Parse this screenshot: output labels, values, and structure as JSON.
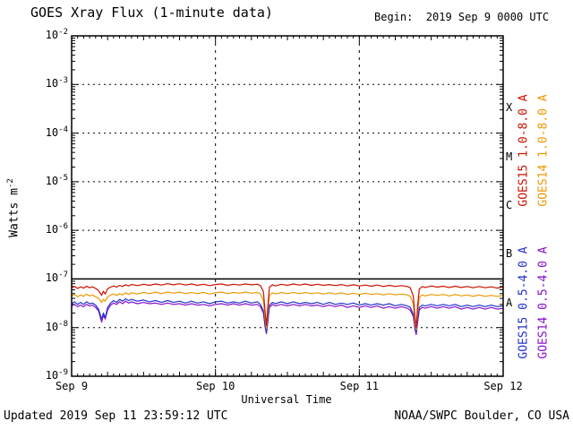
{
  "header": {
    "title": "GOES Xray Flux (1-minute data)",
    "begin_label": "Begin:  2019 Sep 9 0000 UTC"
  },
  "footer": {
    "updated": "Updated 2019 Sep 11 23:59:12 UTC",
    "credit": "NOAA/SWPC Boulder, CO USA"
  },
  "axes": {
    "y_label_base": "Watts m",
    "y_label_exp": "-2",
    "x_label": "Universal Time",
    "x_tick_hours": [
      0,
      24,
      48,
      72
    ],
    "x_tick_labels": [
      "Sep 9",
      "Sep 10",
      "Sep 11",
      "Sep 12"
    ],
    "y_tick_exponents": [
      -2,
      -3,
      -4,
      -5,
      -6,
      -7,
      -8,
      -9
    ]
  },
  "flare_classes": [
    {
      "label": "X",
      "log_center": -3.5
    },
    {
      "label": "M",
      "log_center": -4.5
    },
    {
      "label": "C",
      "log_center": -5.5
    },
    {
      "label": "B",
      "log_center": -6.5
    },
    {
      "label": "A",
      "log_center": -7.5
    }
  ],
  "chart_data": {
    "type": "line",
    "title": "GOES Xray Flux (1-minute data)",
    "xlabel": "Universal Time",
    "ylabel": "Watts m^-2",
    "x_start": "2019 Sep 9 0000 UTC",
    "x_range_hours": [
      0,
      72
    ],
    "y_log_range": [
      1e-09,
      0.01
    ],
    "y_scale": "log",
    "grid_exponents": [
      -3,
      -4,
      -5,
      -6,
      -7,
      -8
    ],
    "solid_line_exponent": -7,
    "dashed_vertical_hours": [
      24,
      48
    ],
    "units": "W m^-2",
    "scale": 1e-08,
    "x_hours": [
      0,
      0.5,
      1,
      1.5,
      2,
      2.5,
      3,
      3.5,
      4,
      4.5,
      5,
      5.3,
      5.6,
      6,
      6.5,
      7,
      7.5,
      8,
      8.5,
      9,
      9.5,
      10,
      11,
      12,
      13,
      14,
      15,
      16,
      17,
      18,
      19,
      20,
      21,
      22,
      23,
      24,
      25,
      26,
      27,
      28,
      29,
      30,
      31,
      31.5,
      32,
      32.3,
      32.5,
      32.7,
      33,
      33.5,
      34,
      35,
      36,
      37,
      38,
      39,
      40,
      41,
      42,
      43,
      44,
      45,
      46,
      47,
      48,
      49,
      50,
      51,
      52,
      53,
      54,
      55,
      56,
      56.5,
      57,
      57.3,
      57.5,
      57.7,
      58,
      58.5,
      59,
      60,
      61,
      62,
      63,
      64,
      65,
      66,
      67,
      68,
      69,
      70,
      71,
      72
    ],
    "series": [
      {
        "name": "GOES15 1.0-8.0 A",
        "color": "#cc1100",
        "values_1e8": [
          6.6,
          7.0,
          6.4,
          6.9,
          6.5,
          7.1,
          6.6,
          6.9,
          6.4,
          5.8,
          4.6,
          5.6,
          4.9,
          6.3,
          6.8,
          7.2,
          6.8,
          7.4,
          7.0,
          7.6,
          7.2,
          7.7,
          7.3,
          7.8,
          7.4,
          7.9,
          7.5,
          8.0,
          7.6,
          8.0,
          7.5,
          7.9,
          7.4,
          7.8,
          7.3,
          7.7,
          7.9,
          7.4,
          7.8,
          7.5,
          7.9,
          7.6,
          7.8,
          7.3,
          5.5,
          2.0,
          1.1,
          2.4,
          6.8,
          7.6,
          7.2,
          7.8,
          7.4,
          7.9,
          7.5,
          7.9,
          7.4,
          7.8,
          7.4,
          7.7,
          7.3,
          7.7,
          7.2,
          7.6,
          7.2,
          7.5,
          7.1,
          7.5,
          7.0,
          7.4,
          7.0,
          7.3,
          7.0,
          6.6,
          4.5,
          1.6,
          1.0,
          2.6,
          6.2,
          7.0,
          6.7,
          7.2,
          6.8,
          7.1,
          6.7,
          7.1,
          6.7,
          7.0,
          6.6,
          7.0,
          6.6,
          6.9,
          6.5,
          6.8
        ]
      },
      {
        "name": "GOES14 1.0-8.0 A",
        "color": "#ee9900",
        "values_1e8": [
          4.5,
          4.8,
          4.3,
          4.7,
          4.4,
          4.9,
          4.5,
          4.7,
          4.3,
          4.0,
          3.3,
          3.8,
          3.5,
          4.3,
          4.7,
          4.9,
          4.6,
          5.0,
          4.7,
          5.2,
          4.8,
          5.2,
          4.9,
          5.3,
          5.0,
          5.4,
          5.0,
          5.4,
          5.1,
          5.4,
          5.0,
          5.3,
          5.0,
          5.3,
          4.9,
          5.2,
          5.4,
          5.0,
          5.3,
          5.1,
          5.4,
          5.1,
          5.3,
          4.9,
          3.6,
          1.5,
          0.95,
          1.8,
          4.6,
          5.2,
          4.9,
          5.3,
          5.0,
          5.3,
          5.0,
          5.3,
          5.0,
          5.2,
          4.9,
          5.2,
          4.9,
          5.2,
          4.8,
          5.1,
          4.8,
          5.1,
          4.8,
          5.0,
          4.7,
          5.0,
          4.7,
          4.9,
          4.7,
          4.4,
          3.1,
          1.2,
          0.9,
          1.9,
          4.2,
          4.7,
          4.5,
          4.8,
          4.6,
          4.8,
          4.5,
          4.8,
          4.5,
          4.7,
          4.4,
          4.7,
          4.4,
          4.6,
          4.4,
          4.6
        ]
      },
      {
        "name": "GOES15 0.5-4.0 A",
        "color": "#2233cc",
        "values_1e8": [
          3.1,
          3.4,
          3.0,
          3.3,
          3.0,
          3.4,
          3.1,
          3.2,
          2.9,
          2.4,
          1.5,
          2.0,
          1.6,
          2.6,
          3.2,
          3.6,
          3.3,
          3.8,
          3.5,
          3.9,
          3.6,
          3.8,
          3.5,
          3.7,
          3.4,
          3.6,
          3.3,
          3.6,
          3.3,
          3.5,
          3.2,
          3.5,
          3.2,
          3.4,
          3.1,
          3.4,
          3.5,
          3.2,
          3.4,
          3.2,
          3.5,
          3.2,
          3.4,
          3.0,
          2.2,
          1.1,
          0.8,
          1.3,
          2.9,
          3.3,
          3.1,
          3.4,
          3.1,
          3.4,
          3.1,
          3.3,
          3.1,
          3.3,
          3.0,
          3.3,
          3.0,
          3.2,
          3.0,
          3.2,
          2.9,
          3.1,
          2.9,
          3.1,
          2.9,
          3.1,
          2.8,
          3.0,
          2.8,
          2.6,
          1.9,
          1.0,
          0.8,
          1.4,
          2.6,
          2.9,
          2.8,
          3.0,
          2.8,
          3.0,
          2.8,
          3.0,
          2.7,
          2.9,
          2.7,
          2.9,
          2.7,
          2.9,
          2.7,
          2.8
        ]
      },
      {
        "name": "GOES14 0.5-4.0 A",
        "color": "#8811cc",
        "values_1e8": [
          2.8,
          3.0,
          2.7,
          2.9,
          2.7,
          3.0,
          2.8,
          2.9,
          2.6,
          2.2,
          1.3,
          1.8,
          1.5,
          2.3,
          2.9,
          3.2,
          3.0,
          3.4,
          3.1,
          3.5,
          3.2,
          3.4,
          3.1,
          3.3,
          3.1,
          3.2,
          3.0,
          3.2,
          3.0,
          3.1,
          2.9,
          3.1,
          2.9,
          3.0,
          2.8,
          3.0,
          3.1,
          2.9,
          3.1,
          2.9,
          3.1,
          2.9,
          3.0,
          2.7,
          2.0,
          1.0,
          0.75,
          1.2,
          2.6,
          3.0,
          2.8,
          3.0,
          2.8,
          3.0,
          2.8,
          3.0,
          2.8,
          2.9,
          2.7,
          2.9,
          2.7,
          2.9,
          2.6,
          2.8,
          2.6,
          2.8,
          2.6,
          2.8,
          2.5,
          2.7,
          2.5,
          2.7,
          2.5,
          2.3,
          1.7,
          0.9,
          0.72,
          1.2,
          2.3,
          2.6,
          2.5,
          2.7,
          2.5,
          2.7,
          2.5,
          2.7,
          2.4,
          2.6,
          2.4,
          2.6,
          2.4,
          2.6,
          2.4,
          2.5
        ]
      }
    ]
  }
}
